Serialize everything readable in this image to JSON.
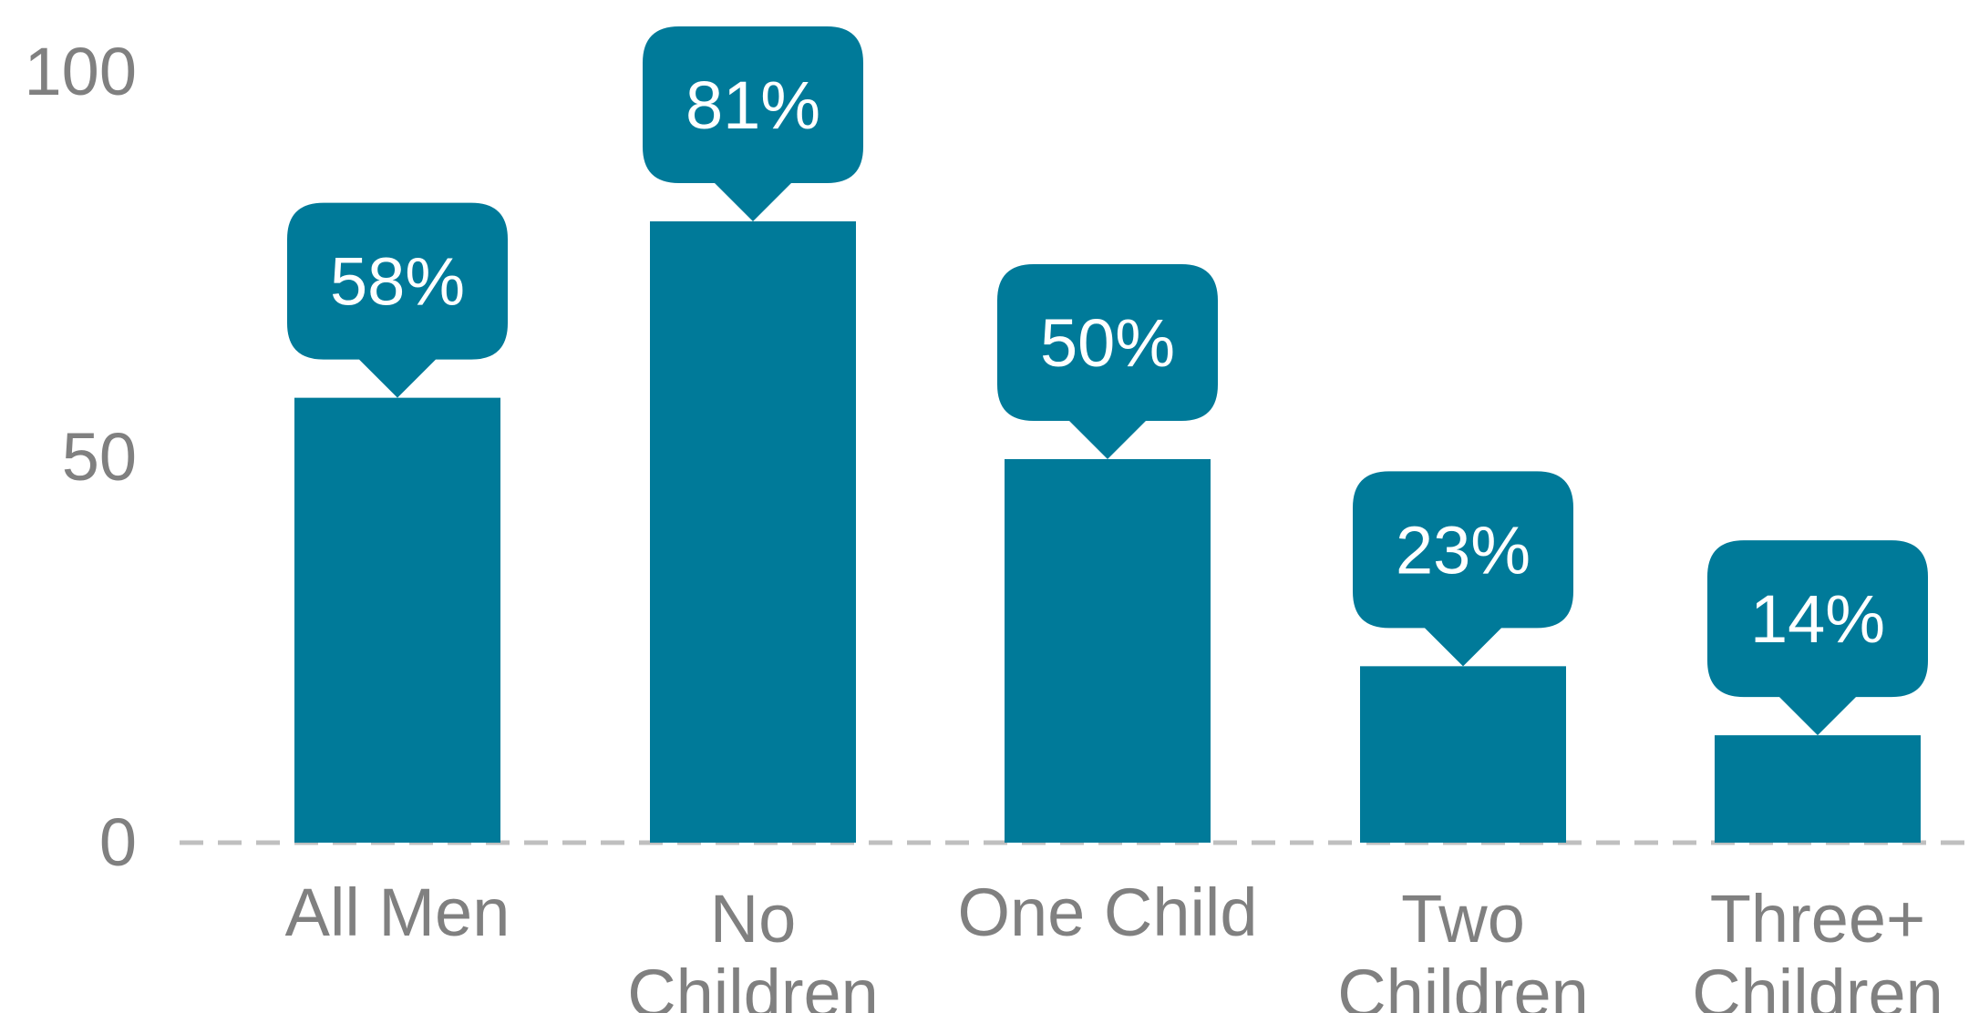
{
  "chart_data": {
    "type": "bar",
    "categories": [
      [
        "All Men"
      ],
      [
        "No",
        "Children"
      ],
      [
        "One Child"
      ],
      [
        "Two",
        "Children"
      ],
      [
        "Three+",
        "Children"
      ]
    ],
    "values": [
      58,
      81,
      50,
      23,
      14
    ],
    "data_labels": [
      "58%",
      "81%",
      "50%",
      "23%",
      "14%"
    ],
    "y_ticks": [
      "0",
      "50",
      "100"
    ],
    "y_tick_values": [
      0,
      50,
      100
    ],
    "ylim": [
      0,
      100
    ],
    "title": "",
    "xlabel": "",
    "ylabel": "",
    "grid": false,
    "legend": "none",
    "baseline_style": "dashed",
    "colors": {
      "bar": "#007A99",
      "tick_text": "#808080",
      "baseline": "#BFBFBF",
      "label_text": "#FFFFFF"
    }
  }
}
